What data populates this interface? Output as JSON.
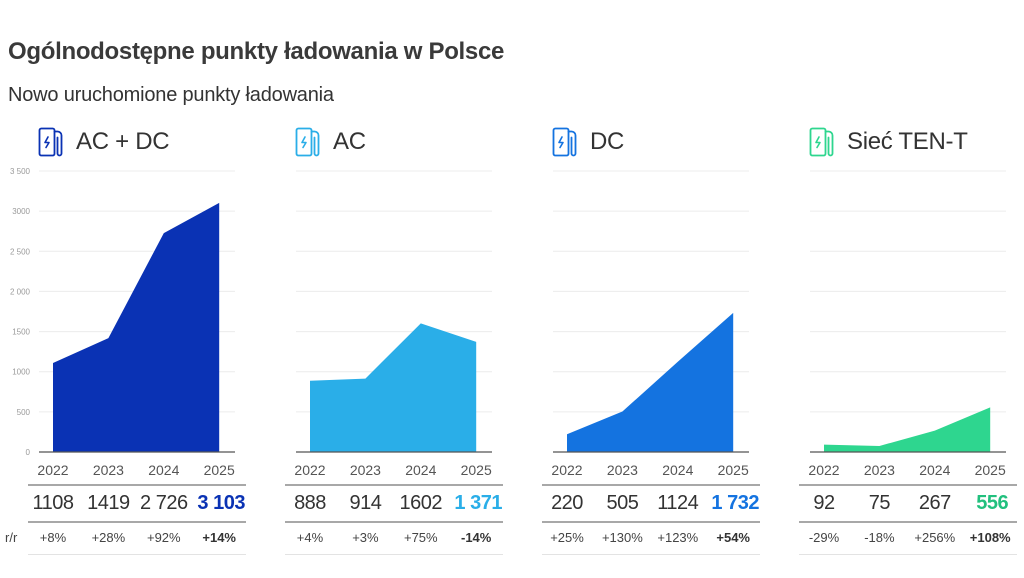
{
  "header": {
    "title": "Ogólnodostępne punkty ładowania w Polsce",
    "subtitle": "Nowo uruchomione punkty ładowania"
  },
  "row_label_yoy": "r/r",
  "y_axis": {
    "ticks": [
      "3 500",
      "3000",
      "2 500",
      "2 000",
      "1500",
      "1000",
      "500",
      "0"
    ],
    "tick_values": [
      3500,
      3000,
      2500,
      2000,
      1500,
      1000,
      500,
      0
    ],
    "max": 3500
  },
  "panels": [
    {
      "label": "AC + DC",
      "icon": "ev-charger-icon",
      "color": "#0a32b4",
      "highlight_color": "#0a32b4",
      "years": [
        "2022",
        "2023",
        "2024",
        "2025"
      ],
      "values_display": [
        "1108",
        "1419",
        "2 726",
        "3 103"
      ],
      "yoy": [
        "+8%",
        "+28%",
        "+92%",
        "+14%"
      ]
    },
    {
      "label": "AC",
      "icon": "ev-charger-icon",
      "color": "#2aaee8",
      "highlight_color": "#2aaee8",
      "years": [
        "2022",
        "2023",
        "2024",
        "2025"
      ],
      "values_display": [
        "888",
        "914",
        "1602",
        "1 371"
      ],
      "yoy": [
        "+4%",
        "+3%",
        "+75%",
        "-14%"
      ]
    },
    {
      "label": "DC",
      "icon": "ev-charger-icon",
      "color": "#1473e0",
      "highlight_color": "#1473e0",
      "years": [
        "2022",
        "2023",
        "2024",
        "2025"
      ],
      "values_display": [
        "220",
        "505",
        "1124",
        "1 732"
      ],
      "yoy": [
        "+25%",
        "+130%",
        "+123%",
        "+54%"
      ]
    },
    {
      "label": "Sieć TEN-T",
      "icon": "ev-charger-icon",
      "color": "#2ed68f",
      "highlight_color": "#22c07e",
      "years": [
        "2022",
        "2023",
        "2024",
        "2025"
      ],
      "values_display": [
        "92",
        "75",
        "267",
        "556"
      ],
      "yoy": [
        "-29%",
        "-18%",
        "+256%",
        "+108%"
      ]
    }
  ],
  "chart_data": [
    {
      "type": "area",
      "title": "AC + DC",
      "categories": [
        "2022",
        "2023",
        "2024",
        "2025"
      ],
      "values": [
        1108,
        1419,
        2726,
        3103
      ],
      "yoy_change": [
        "+8%",
        "+28%",
        "+92%",
        "+14%"
      ],
      "ylim": [
        0,
        3500
      ],
      "yticks": [
        0,
        500,
        1000,
        1500,
        2000,
        2500,
        3000,
        3500
      ],
      "grid": true,
      "color": "#0a32b4"
    },
    {
      "type": "area",
      "title": "AC",
      "categories": [
        "2022",
        "2023",
        "2024",
        "2025"
      ],
      "values": [
        888,
        914,
        1602,
        1371
      ],
      "yoy_change": [
        "+4%",
        "+3%",
        "+75%",
        "-14%"
      ],
      "ylim": [
        0,
        3500
      ],
      "grid": true,
      "color": "#2aaee8"
    },
    {
      "type": "area",
      "title": "DC",
      "categories": [
        "2022",
        "2023",
        "2024",
        "2025"
      ],
      "values": [
        220,
        505,
        1124,
        1732
      ],
      "yoy_change": [
        "+25%",
        "+130%",
        "+123%",
        "+54%"
      ],
      "ylim": [
        0,
        3500
      ],
      "grid": true,
      "color": "#1473e0"
    },
    {
      "type": "area",
      "title": "Sieć TEN-T",
      "categories": [
        "2022",
        "2023",
        "2024",
        "2025"
      ],
      "values": [
        92,
        75,
        267,
        556
      ],
      "yoy_change": [
        "-29%",
        "-18%",
        "+256%",
        "+108%"
      ],
      "ylim": [
        0,
        3500
      ],
      "grid": true,
      "color": "#2ed68f"
    }
  ]
}
